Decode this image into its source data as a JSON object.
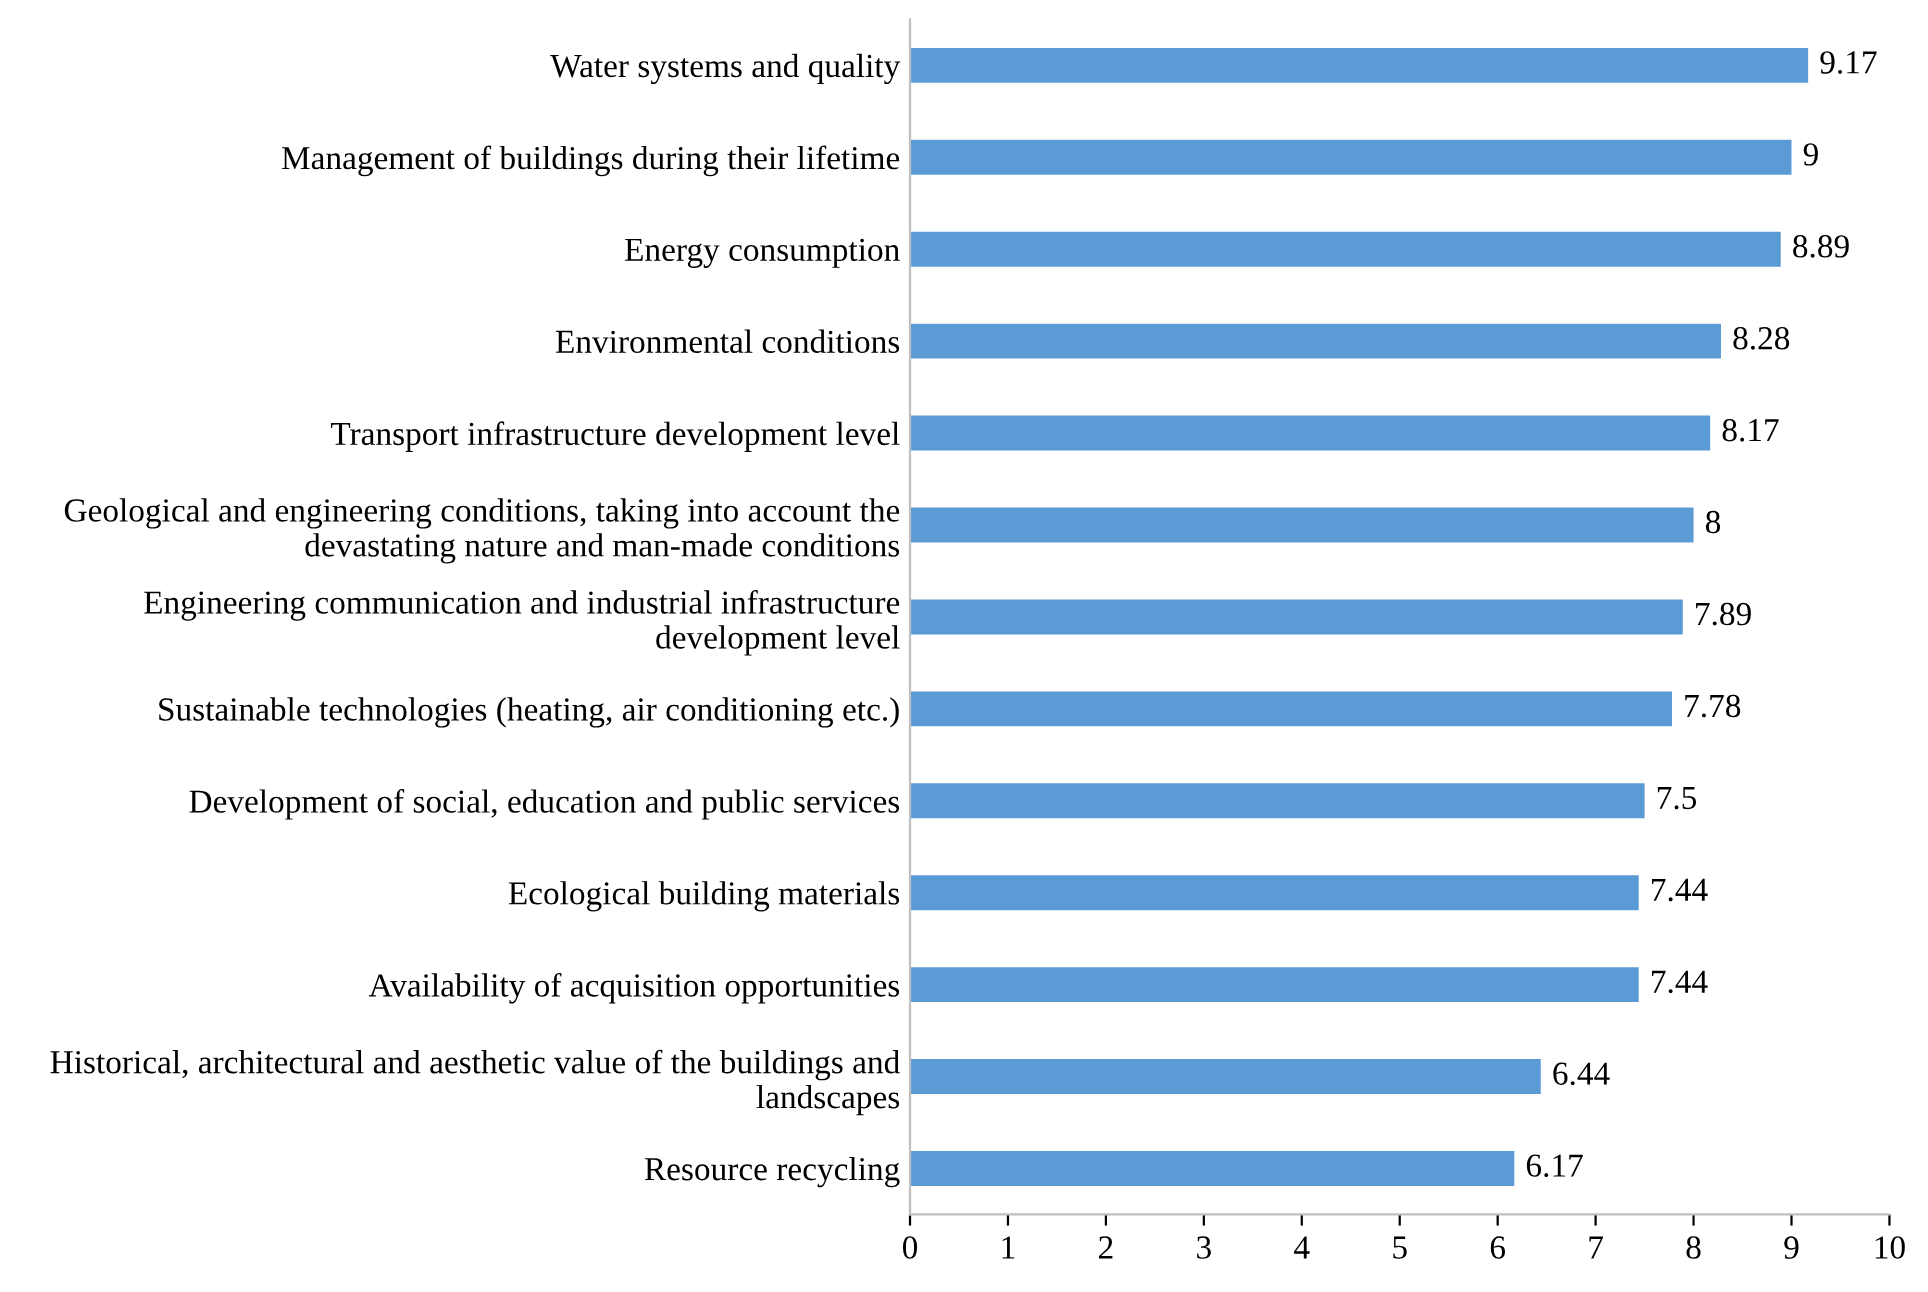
{
  "chart_data": {
    "type": "bar",
    "orientation": "horizontal",
    "categories": [
      "Water systems and quality",
      "Management of buildings during their lifetime",
      "Energy consumption",
      "Environmental conditions",
      "Transport infrastructure development level",
      "Geological and engineering conditions, taking into account the\ndevastating nature and man-made conditions",
      "Engineering communication and industrial infrastructure\ndevelopment level",
      "Sustainable technologies (heating, air conditioning etc.)",
      "Development of social, education and public services",
      "Ecological building materials",
      "Availability of acquisition opportunities",
      "Historical, architectural and aesthetic value of the buildings and\nlandscapes",
      "Resource recycling"
    ],
    "values": [
      9.17,
      9,
      8.89,
      8.28,
      8.17,
      8,
      7.89,
      7.78,
      7.5,
      7.44,
      7.44,
      6.44,
      6.17
    ],
    "color": "#5b9bd5",
    "xlim": [
      0,
      10
    ],
    "xticks": [
      0,
      1,
      2,
      3,
      4,
      5,
      6,
      7,
      8,
      9,
      10
    ],
    "data_labels": true,
    "grid": false,
    "legend": false
  }
}
